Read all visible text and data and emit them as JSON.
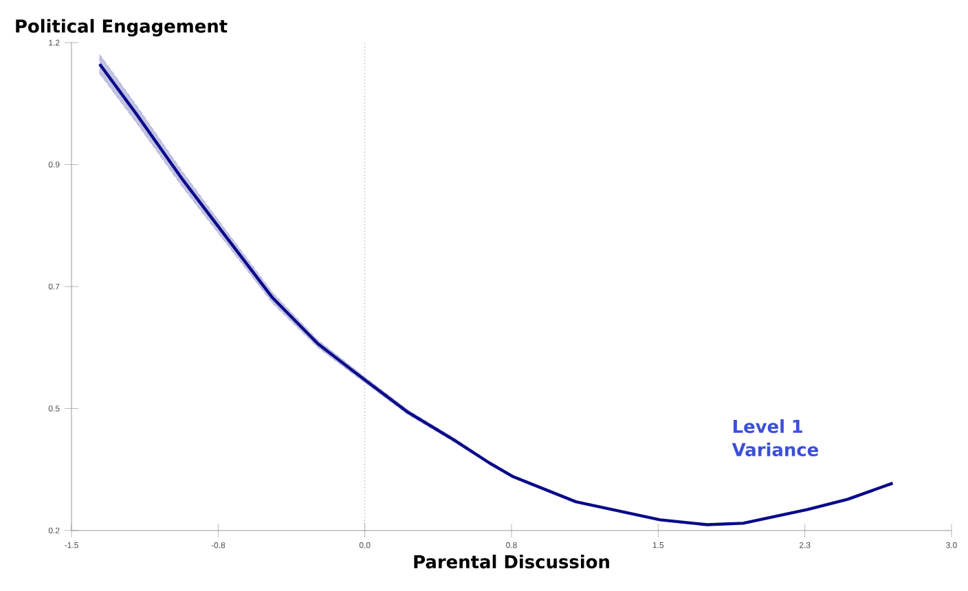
{
  "chart_data": {
    "type": "line",
    "xlabel": "Parental Discussion",
    "ylabel": "Political Engagement",
    "annotations": [
      "Level 1 Variance"
    ],
    "xlim": [
      -1.5,
      3.0
    ],
    "ylim": [
      0.2,
      1.2
    ],
    "xticks": [
      -1.5,
      {
        "value": -0.75,
        "label": "-0.8"
      },
      {
        "value": 0,
        "label": "0.0"
      },
      {
        "value": 0.75,
        "label": "0.8"
      },
      1.5,
      {
        "value": 2.25,
        "label": "2.3"
      },
      {
        "value": 3,
        "label": "3.0"
      }
    ],
    "yticks": [
      0.2,
      {
        "value": 0.45,
        "label": "0.5"
      },
      0.7,
      {
        "value": 0.95,
        "label": "0.9"
      },
      1.2
    ],
    "ref_lines": [
      {
        "axis": "x",
        "value": 0.0,
        "color": "#333333",
        "line_style": "dotted"
      }
    ],
    "grid": false,
    "marker": "none",
    "line_style": "solid",
    "series": [
      {
        "color": "#0a0a8a",
        "x": [
          -1.356,
          -1.167,
          -0.935,
          -0.704,
          -0.472,
          -0.241,
          0.002,
          0.222,
          0.454,
          0.639,
          0.755,
          1.079,
          1.509,
          1.75,
          1.935,
          2.264,
          2.468,
          2.699
        ],
        "values": [
          1.156,
          1.053,
          0.921,
          0.799,
          0.677,
          0.583,
          0.508,
          0.442,
          0.386,
          0.338,
          0.311,
          0.259,
          0.222,
          0.212,
          0.215,
          0.243,
          0.264,
          0.297
        ],
        "lower": [
          1.136,
          1.035,
          0.905,
          0.786,
          0.666,
          0.575,
          0.502,
          0.437,
          0.382,
          0.335,
          0.308,
          0.257,
          0.22,
          0.21,
          0.213,
          0.241,
          0.262,
          0.295
        ],
        "upper": [
          1.176,
          1.071,
          0.937,
          0.812,
          0.688,
          0.591,
          0.514,
          0.447,
          0.39,
          0.341,
          0.314,
          0.261,
          0.224,
          0.214,
          0.217,
          0.245,
          0.266,
          0.299
        ]
      }
    ]
  }
}
